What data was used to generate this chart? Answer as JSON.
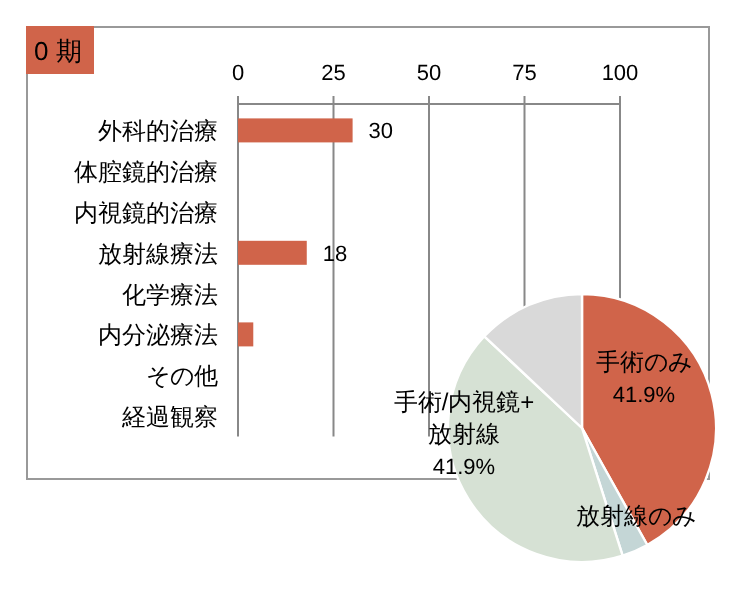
{
  "chart_data": [
    {
      "type": "bar",
      "orientation": "horizontal",
      "title": "0 期",
      "categories": [
        "外科的治療",
        "体腔鏡的治療",
        "内視鏡的治療",
        "放射線療法",
        "化学療法",
        "内分泌療法",
        "その他",
        "経過観察"
      ],
      "values": [
        30,
        null,
        null,
        18,
        null,
        4,
        null,
        null
      ],
      "value_labels": [
        "30",
        null,
        null,
        "18",
        null,
        null,
        null,
        null
      ],
      "color": "#d0644a",
      "xlim": [
        0,
        100
      ],
      "xticks": [
        0,
        25,
        50,
        75,
        100
      ],
      "grid": "x"
    },
    {
      "type": "pie",
      "categories": [
        "手術のみ",
        "放射線のみ",
        "手術/内視鏡+放射線",
        null
      ],
      "values": [
        41.9,
        3.2,
        41.9,
        13.0
      ],
      "value_labels": [
        "41.9%",
        null,
        "41.9%",
        null
      ],
      "colors": [
        "#d0644a",
        "#c4d6d6",
        "#d6e1d4",
        "#d9d9d9"
      ]
    }
  ]
}
